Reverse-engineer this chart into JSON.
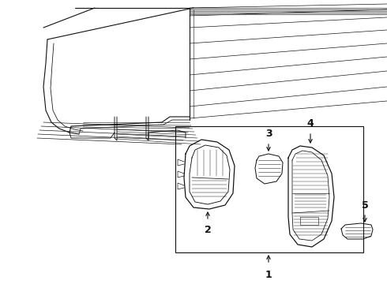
{
  "bg_color": "#ffffff",
  "line_color": "#111111",
  "lw": 0.8,
  "label_fontsize": 8,
  "labels": [
    "1",
    "2",
    "3",
    "4",
    "5"
  ]
}
